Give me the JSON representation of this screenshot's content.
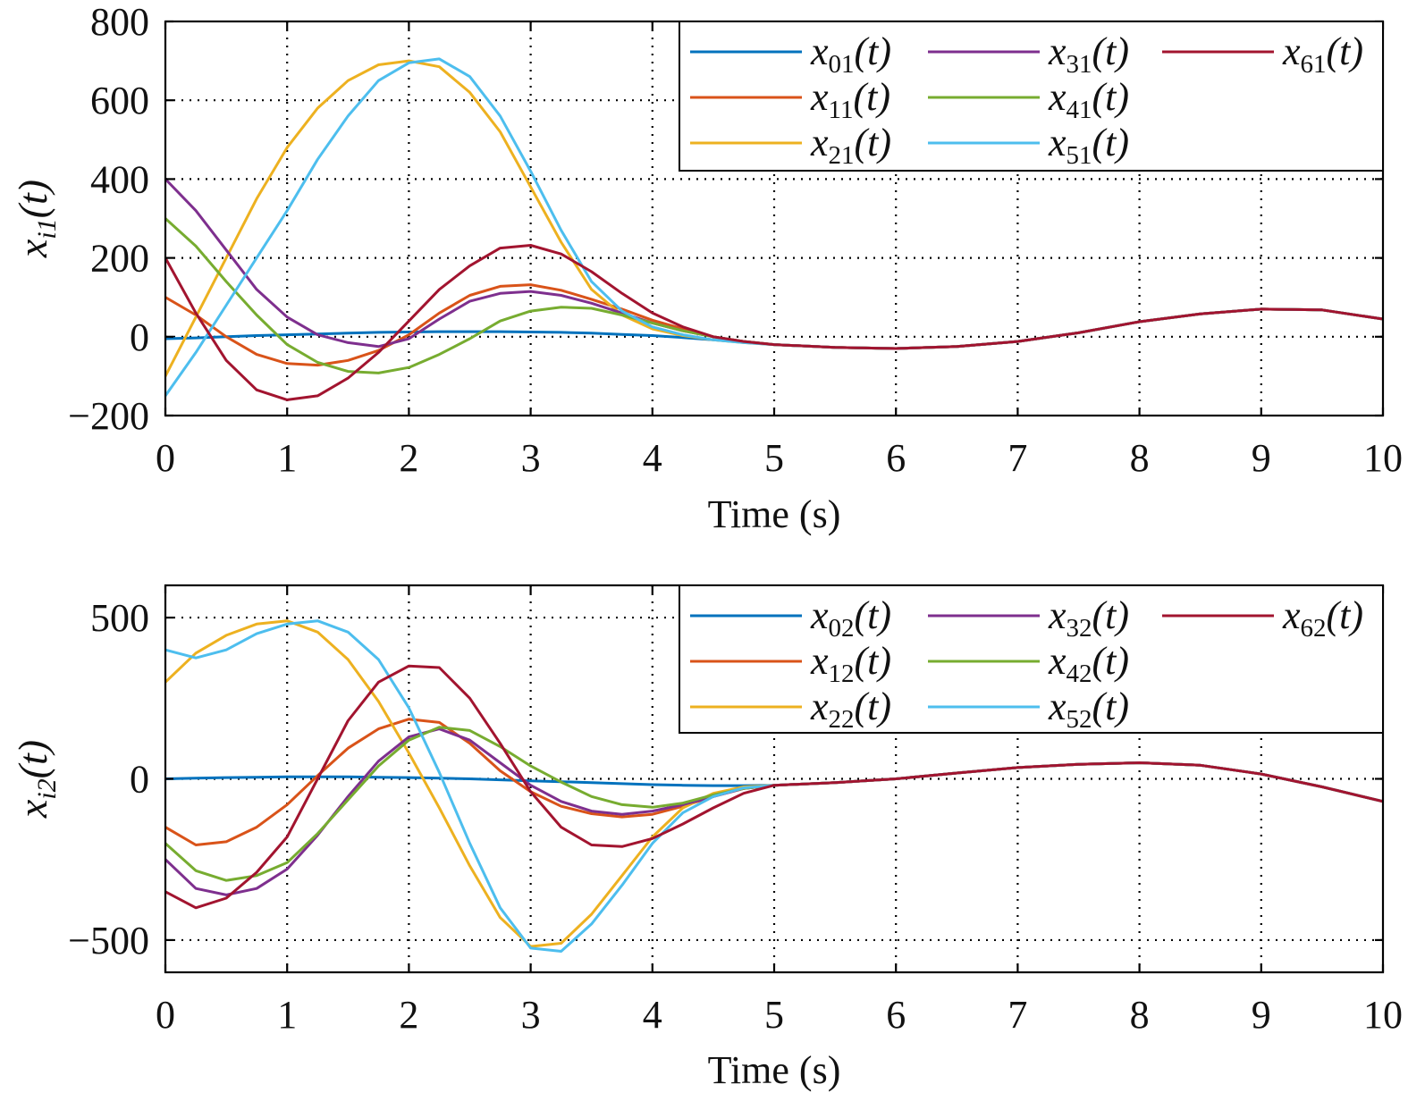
{
  "chart_data": [
    {
      "type": "line",
      "title": "",
      "xlabel": "Time (s)",
      "ylabel_parts": {
        "base": "x",
        "sub": "i1",
        "arg": "(t)"
      },
      "xlim": [
        0,
        10
      ],
      "ylim": [
        -200,
        800
      ],
      "xticks": [
        0,
        1,
        2,
        3,
        4,
        5,
        6,
        7,
        8,
        9,
        10
      ],
      "yticks": [
        -200,
        0,
        200,
        400,
        600,
        800
      ],
      "ytick_labels": [
        "−200",
        "0",
        "200",
        "400",
        "600",
        "800"
      ],
      "grid": true,
      "legend_position": "top-right",
      "legend_columns": 3,
      "x": [
        0,
        0.25,
        0.5,
        0.75,
        1,
        1.25,
        1.5,
        1.75,
        2,
        2.25,
        2.5,
        2.75,
        3,
        3.25,
        3.5,
        3.75,
        4,
        4.25,
        4.5,
        4.75,
        5,
        5.5,
        6,
        6.5,
        7,
        7.5,
        8,
        8.5,
        9,
        9.5,
        10
      ],
      "series": [
        {
          "name_base": "x",
          "name_sub": "01",
          "name_arg": "(t)",
          "color": "#0072BD",
          "values": [
            -5,
            -3,
            0,
            3,
            5,
            7,
            9,
            11,
            12,
            13,
            13,
            13,
            12,
            11,
            9,
            6,
            3,
            -2,
            -8,
            -14,
            -20,
            -27,
            -30,
            -25,
            -12,
            10,
            38,
            58,
            70,
            68,
            45
          ]
        },
        {
          "name_base": "x",
          "name_sub": "11",
          "name_arg": "(t)",
          "color": "#D95319",
          "values": [
            100,
            55,
            0,
            -45,
            -68,
            -72,
            -60,
            -35,
            5,
            60,
            105,
            128,
            132,
            118,
            95,
            70,
            42,
            20,
            0,
            -12,
            -20,
            -27,
            -30,
            -25,
            -12,
            10,
            38,
            58,
            70,
            68,
            45
          ]
        },
        {
          "name_base": "x",
          "name_sub": "21",
          "name_arg": "(t)",
          "color": "#EDB120",
          "values": [
            -100,
            50,
            200,
            350,
            480,
            580,
            650,
            690,
            700,
            685,
            620,
            520,
            380,
            240,
            120,
            55,
            20,
            3,
            -8,
            -15,
            -20,
            -27,
            -30,
            -25,
            -12,
            10,
            38,
            58,
            70,
            68,
            45
          ]
        },
        {
          "name_base": "x",
          "name_sub": "31",
          "name_arg": "(t)",
          "color": "#7E2F8E",
          "values": [
            400,
            320,
            220,
            120,
            50,
            5,
            -15,
            -25,
            -5,
            45,
            90,
            110,
            115,
            105,
            85,
            60,
            35,
            15,
            0,
            -12,
            -20,
            -27,
            -30,
            -25,
            -12,
            10,
            38,
            58,
            70,
            68,
            45
          ]
        },
        {
          "name_base": "x",
          "name_sub": "41",
          "name_arg": "(t)",
          "color": "#77AC30",
          "values": [
            300,
            230,
            140,
            55,
            -20,
            -65,
            -88,
            -92,
            -78,
            -45,
            -5,
            40,
            65,
            75,
            72,
            55,
            35,
            15,
            0,
            -12,
            -20,
            -27,
            -30,
            -25,
            -12,
            10,
            38,
            58,
            70,
            68,
            45
          ]
        },
        {
          "name_base": "x",
          "name_sub": "51",
          "name_arg": "(t)",
          "color": "#4DBEEE",
          "values": [
            -150,
            -40,
            80,
            200,
            320,
            450,
            560,
            650,
            695,
            705,
            660,
            560,
            420,
            270,
            140,
            65,
            25,
            5,
            -8,
            -15,
            -20,
            -27,
            -30,
            -25,
            -12,
            10,
            38,
            58,
            70,
            68,
            45
          ]
        },
        {
          "name_base": "x",
          "name_sub": "61",
          "name_arg": "(t)",
          "color": "#A2142F",
          "values": [
            200,
            60,
            -60,
            -135,
            -160,
            -150,
            -105,
            -40,
            40,
            120,
            180,
            225,
            232,
            210,
            165,
            110,
            60,
            25,
            0,
            -12,
            -20,
            -27,
            -30,
            -25,
            -12,
            10,
            38,
            58,
            70,
            68,
            45
          ]
        }
      ]
    },
    {
      "type": "line",
      "title": "",
      "xlabel": "Time (s)",
      "ylabel_parts": {
        "base": "x",
        "sub": "i2",
        "arg": "(t)"
      },
      "xlim": [
        0,
        10
      ],
      "ylim": [
        -600,
        600
      ],
      "xticks": [
        0,
        1,
        2,
        3,
        4,
        5,
        6,
        7,
        8,
        9,
        10
      ],
      "yticks": [
        -500,
        0,
        500
      ],
      "ytick_labels": [
        "−500",
        "0",
        "500"
      ],
      "grid": true,
      "legend_position": "top-right",
      "legend_columns": 3,
      "x": [
        0,
        0.25,
        0.5,
        0.75,
        1,
        1.25,
        1.5,
        1.75,
        2,
        2.25,
        2.5,
        2.75,
        3,
        3.25,
        3.5,
        3.75,
        4,
        4.25,
        4.5,
        4.75,
        5,
        5.5,
        6,
        6.5,
        7,
        7.5,
        8,
        8.5,
        9,
        9.5,
        10
      ],
      "series": [
        {
          "name_base": "x",
          "name_sub": "02",
          "name_arg": "(t)",
          "color": "#0072BD",
          "values": [
            0,
            2,
            4,
            5,
            6,
            6,
            6,
            5,
            4,
            2,
            0,
            -3,
            -6,
            -9,
            -12,
            -15,
            -18,
            -20,
            -21,
            -21,
            -20,
            -12,
            0,
            18,
            35,
            45,
            50,
            42,
            15,
            -25,
            -70
          ]
        },
        {
          "name_base": "x",
          "name_sub": "12",
          "name_arg": "(t)",
          "color": "#D95319",
          "values": [
            -150,
            -205,
            -195,
            -150,
            -80,
            10,
            95,
            155,
            185,
            175,
            110,
            25,
            -40,
            -85,
            -108,
            -118,
            -110,
            -85,
            -55,
            -30,
            -20,
            -12,
            0,
            18,
            35,
            45,
            50,
            42,
            15,
            -25,
            -70
          ]
        },
        {
          "name_base": "x",
          "name_sub": "22",
          "name_arg": "(t)",
          "color": "#EDB120",
          "values": [
            300,
            390,
            445,
            480,
            490,
            455,
            370,
            240,
            80,
            -90,
            -270,
            -430,
            -520,
            -510,
            -420,
            -300,
            -180,
            -90,
            -45,
            -25,
            -20,
            -12,
            0,
            18,
            35,
            45,
            50,
            42,
            15,
            -25,
            -70
          ]
        },
        {
          "name_base": "x",
          "name_sub": "32",
          "name_arg": "(t)",
          "color": "#7E2F8E",
          "values": [
            -250,
            -340,
            -360,
            -340,
            -280,
            -175,
            -55,
            55,
            130,
            155,
            120,
            50,
            -20,
            -70,
            -100,
            -110,
            -100,
            -80,
            -55,
            -30,
            -20,
            -12,
            0,
            18,
            35,
            45,
            50,
            42,
            15,
            -25,
            -70
          ]
        },
        {
          "name_base": "x",
          "name_sub": "42",
          "name_arg": "(t)",
          "color": "#77AC30",
          "values": [
            -200,
            -285,
            -315,
            -300,
            -260,
            -170,
            -65,
            40,
            120,
            160,
            150,
            100,
            40,
            -10,
            -55,
            -80,
            -88,
            -75,
            -50,
            -30,
            -20,
            -12,
            0,
            18,
            35,
            45,
            50,
            42,
            15,
            -25,
            -70
          ]
        },
        {
          "name_base": "x",
          "name_sub": "52",
          "name_arg": "(t)",
          "color": "#4DBEEE",
          "values": [
            400,
            375,
            400,
            450,
            480,
            490,
            455,
            370,
            220,
            20,
            -200,
            -400,
            -525,
            -535,
            -450,
            -330,
            -200,
            -105,
            -55,
            -28,
            -20,
            -12,
            0,
            18,
            35,
            45,
            50,
            42,
            15,
            -25,
            -70
          ]
        },
        {
          "name_base": "x",
          "name_sub": "62",
          "name_arg": "(t)",
          "color": "#A2142F",
          "values": [
            -350,
            -400,
            -370,
            -290,
            -180,
            0,
            180,
            300,
            350,
            345,
            250,
            110,
            -40,
            -150,
            -205,
            -210,
            -185,
            -140,
            -90,
            -45,
            -20,
            -12,
            0,
            18,
            35,
            45,
            50,
            42,
            15,
            -25,
            -70
          ]
        }
      ]
    }
  ]
}
